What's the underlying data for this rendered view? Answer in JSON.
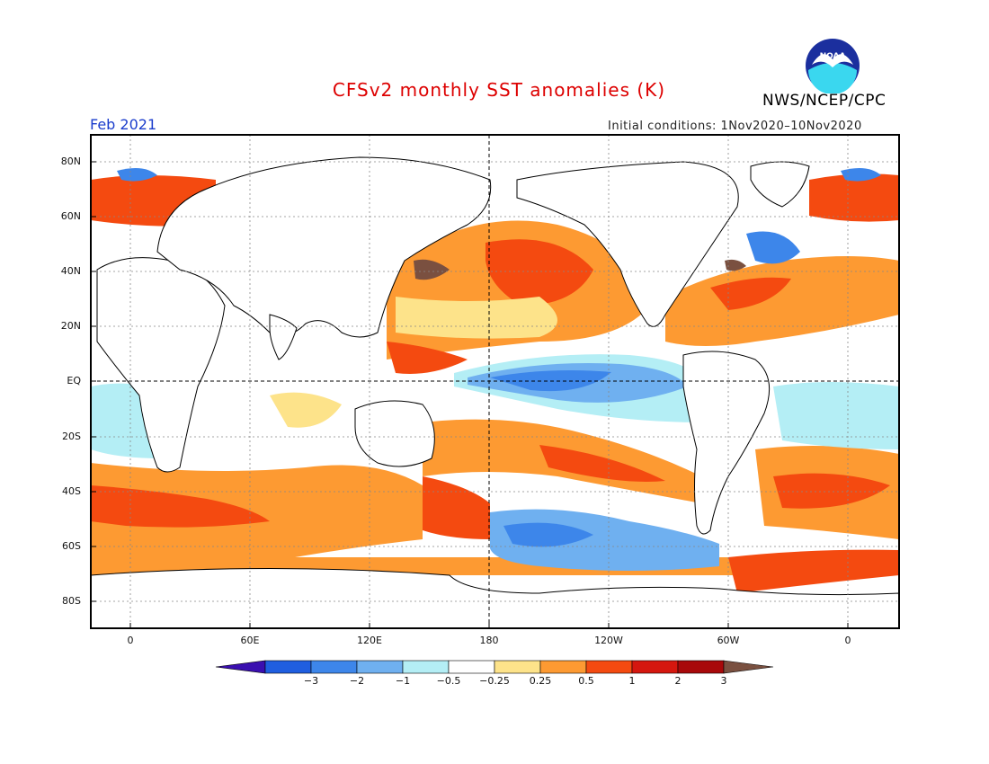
{
  "header": {
    "title": "CFSv2 monthly SST anomalies (K)",
    "month": "Feb 2021",
    "agency": "NWS/NCEP/CPC",
    "initial_conditions": "Initial conditions: 1Nov2020–10Nov2020",
    "logo_text": "NOAA"
  },
  "axes": {
    "lat_labels": [
      "80N",
      "60N",
      "40N",
      "20N",
      "EQ",
      "20S",
      "40S",
      "60S",
      "80S"
    ],
    "lon_labels": [
      "0",
      "60E",
      "120E",
      "180",
      "120W",
      "60W",
      "0"
    ]
  },
  "colorbar": {
    "labels": [
      "−3",
      "−2",
      "−1",
      "−0.5",
      "−0.25",
      "0.25",
      "0.5",
      "1",
      "2",
      "3"
    ],
    "colors": [
      "#3a0fb0",
      "#1f5ee0",
      "#3d86ea",
      "#6fb0f0",
      "#b4eef5",
      "#ffffff",
      "#fde38a",
      "#fd9a32",
      "#f44a10",
      "#d5170f",
      "#a8090a",
      "#7a5040"
    ]
  },
  "palette": {
    "title_color": "#dd0000",
    "month_color": "#1a3ccc"
  }
}
